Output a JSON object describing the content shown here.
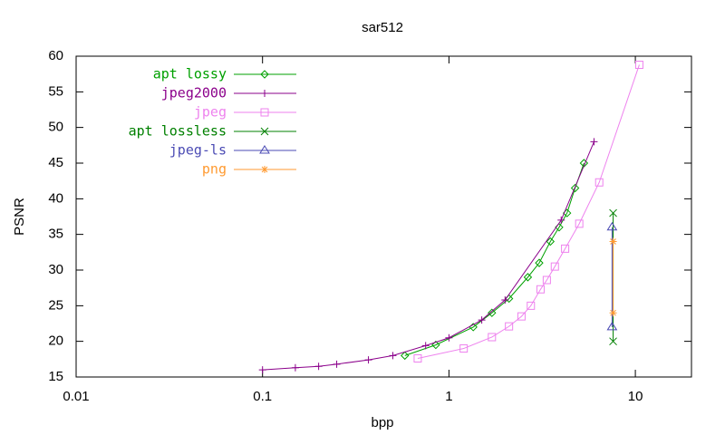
{
  "chart_data": {
    "type": "line",
    "title": "sar512",
    "x_label": "bpp",
    "y_label": "PSNR",
    "xlog": true,
    "xlim": [
      0.01,
      20
    ],
    "xticks": [
      0.01,
      0.1,
      1,
      10
    ],
    "ylim": [
      15,
      60
    ],
    "yticks": [
      15,
      20,
      25,
      30,
      35,
      40,
      45,
      50,
      55,
      60
    ],
    "legend": "top-left",
    "series": [
      {
        "name": "apt lossy",
        "color": "#00a000",
        "marker": "diamond",
        "x": [
          0.58,
          0.85,
          1.35,
          1.7,
          2.1,
          2.65,
          3.05,
          3.5,
          3.9,
          4.3,
          4.75,
          5.3
        ],
        "values": [
          18,
          19.5,
          22,
          24,
          26,
          29,
          31,
          34,
          36,
          38,
          41.5,
          45
        ]
      },
      {
        "name": "jpeg2000",
        "color": "#8b008b",
        "marker": "plus",
        "x": [
          0.1,
          0.15,
          0.2,
          0.25,
          0.37,
          0.5,
          0.75,
          1,
          1.5,
          2,
          4,
          6
        ],
        "values": [
          16,
          16.3,
          16.5,
          16.8,
          17.4,
          18,
          19.4,
          20.5,
          23,
          25.8,
          37,
          48
        ]
      },
      {
        "name": "jpeg",
        "color": "#ee82ee",
        "marker": "square",
        "x": [
          0.68,
          1.2,
          1.7,
          2.1,
          2.45,
          2.75,
          3.1,
          3.35,
          3.7,
          4.2,
          5,
          6.4,
          10.5
        ],
        "values": [
          17.6,
          19,
          20.6,
          22.1,
          23.5,
          25,
          27.3,
          28.6,
          30.5,
          33,
          36.5,
          42.3,
          58.8
        ]
      },
      {
        "name": "apt lossless",
        "color": "#008000",
        "marker": "cross",
        "x": [
          7.6,
          7.6
        ],
        "values": [
          20,
          38
        ]
      },
      {
        "name": "jpeg-ls",
        "color": "#4b4bb4",
        "marker": "triangle",
        "x": [
          7.5,
          7.5
        ],
        "values": [
          22,
          36
        ]
      },
      {
        "name": "png",
        "color": "#ff9a30",
        "marker": "star",
        "x": [
          7.6,
          7.6
        ],
        "values": [
          24,
          34
        ]
      }
    ]
  }
}
